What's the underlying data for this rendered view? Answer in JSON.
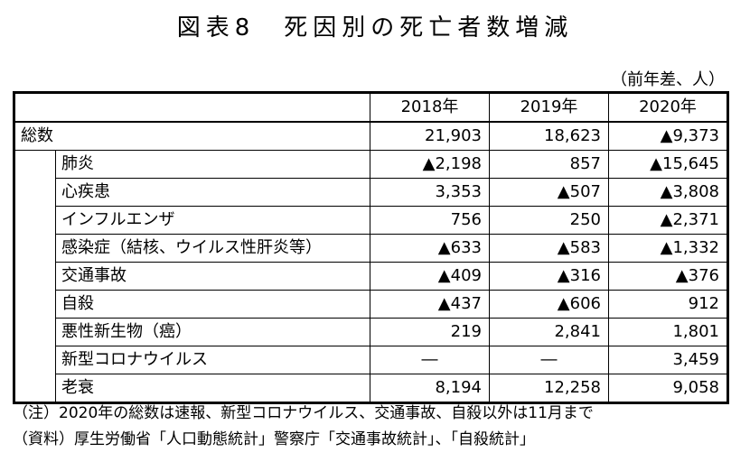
{
  "title": "図表8　死因別の死亡者数増減",
  "unit_note": "（前年差、人）",
  "columns": [
    "2018年",
    "2019年",
    "2020年"
  ],
  "total_row": {
    "label": "総数",
    "values": [
      "21,903",
      "18,623",
      "▲9,373"
    ]
  },
  "rows": [
    {
      "label": "肺炎",
      "values": [
        "▲2,198",
        "857",
        "▲15,645"
      ]
    },
    {
      "label": "心疾患",
      "values": [
        "3,353",
        "▲507",
        "▲3,808"
      ]
    },
    {
      "label": "インフルエンザ",
      "values": [
        "756",
        "250",
        "▲2,371"
      ]
    },
    {
      "label": "感染症（結核、ウイルス性肝炎等）",
      "values": [
        "▲633",
        "▲583",
        "▲1,332"
      ]
    },
    {
      "label": "交通事故",
      "values": [
        "▲409",
        "▲316",
        "▲376"
      ]
    },
    {
      "label": "自殺",
      "values": [
        "▲437",
        "▲606",
        "912"
      ]
    },
    {
      "label": "悪性新生物（癌）",
      "values": [
        "219",
        "2,841",
        "1,801"
      ]
    },
    {
      "label": "新型コロナウイルス",
      "values": [
        "―",
        "―",
        "3,459"
      ]
    },
    {
      "label": "老衰",
      "values": [
        "8,194",
        "12,258",
        "9,058"
      ]
    }
  ],
  "notes": [
    "（注）2020年の総数は速報、新型コロナウイルス、交通事故、自殺以外は11月まで",
    "（資料）厚生労働省「人口動態統計」警察庁「交通事故統計」、「自殺統計」"
  ]
}
